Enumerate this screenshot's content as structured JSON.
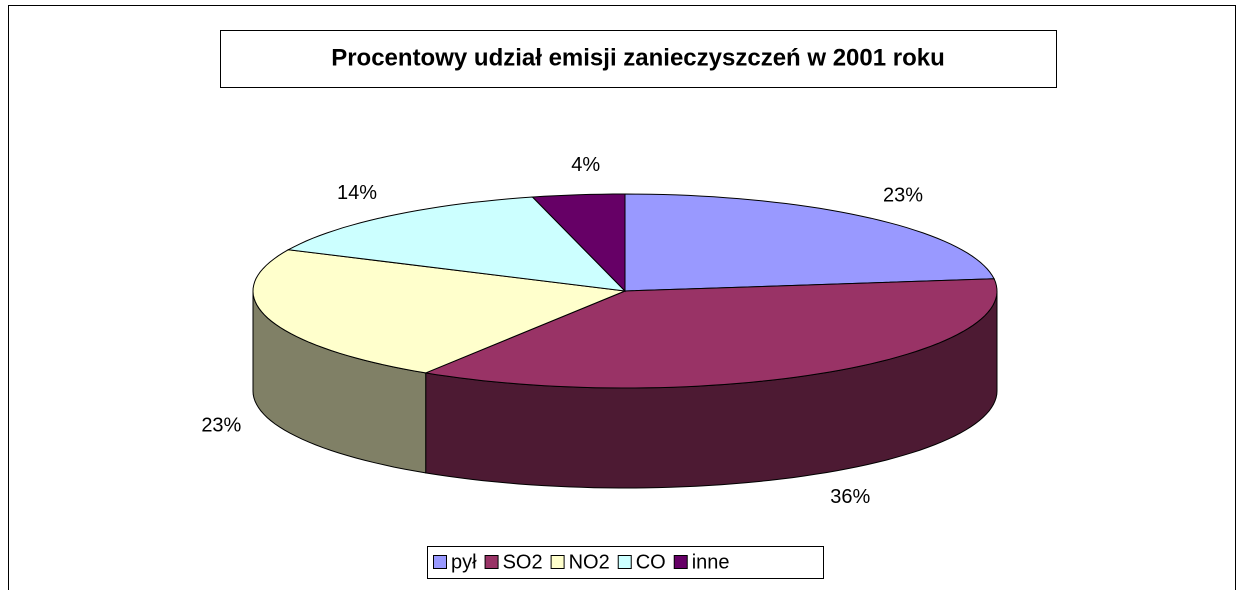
{
  "chart_data": {
    "type": "pie",
    "title": "Procentowy udział emisji zanieczyszczeń w 2001 roku",
    "categories": [
      "pył",
      "SO2",
      "NO2",
      "CO",
      "inne"
    ],
    "values": [
      23,
      36,
      23,
      14,
      4
    ],
    "value_labels": [
      "23%",
      "36%",
      "23%",
      "14%",
      "4%"
    ],
    "colors": [
      "#9999ff",
      "#993366",
      "#ffffcc",
      "#ccffff",
      "#660066"
    ],
    "legend": "bottom"
  }
}
